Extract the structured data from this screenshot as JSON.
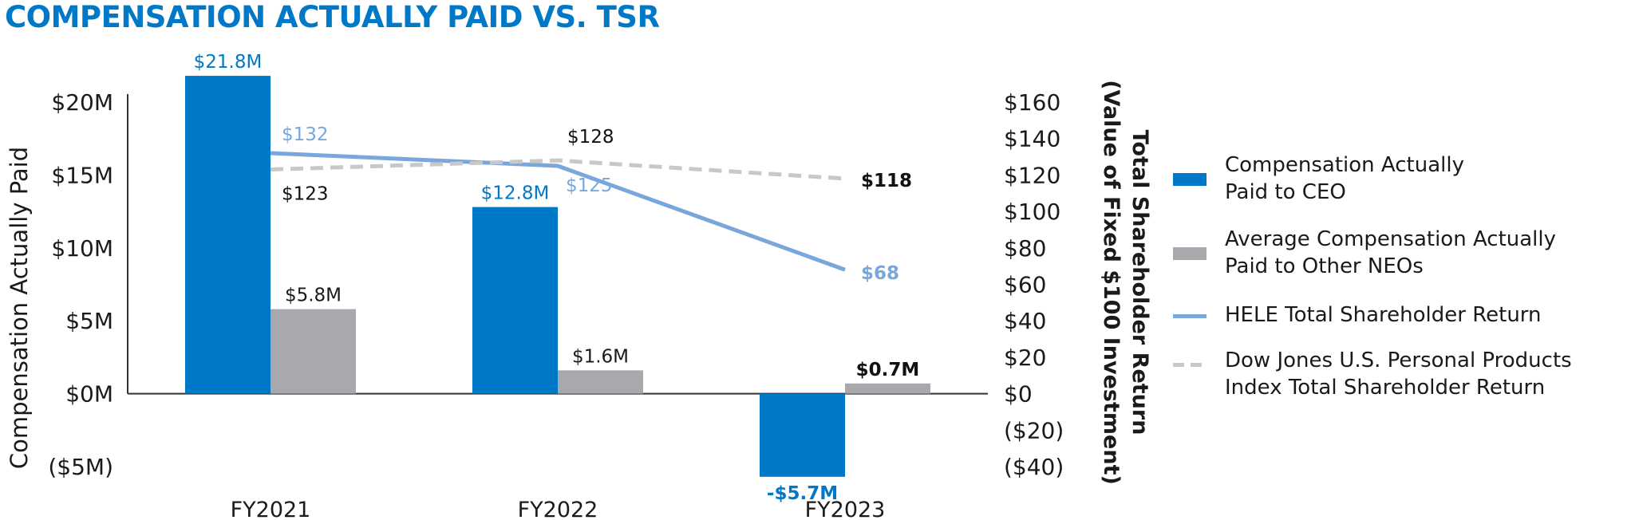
{
  "chart_data": {
    "type": "bar",
    "title": "COMPENSATION ACTUALLY PAID VS. TSR",
    "categories": [
      "FY2021",
      "FY2022",
      "FY2023"
    ],
    "ylabel_left": "Compensation Actually Paid",
    "ylabel_right_line1": "Total Shareholder Return",
    "ylabel_right_line2": "(Value of Fixed $100 Investment)",
    "left_axis": {
      "ylim": [
        -5,
        20
      ],
      "ticks": [
        20,
        15,
        10,
        5,
        0,
        -5
      ],
      "tick_labels": [
        "$20M",
        "$15M",
        "$10M",
        "$5M",
        "$0M",
        "($5M)"
      ]
    },
    "right_axis": {
      "ylim": [
        -40,
        160
      ],
      "ticks": [
        160,
        140,
        120,
        100,
        80,
        60,
        40,
        20,
        0,
        -20,
        -40
      ],
      "tick_labels": [
        "$160",
        "$140",
        "$120",
        "$100",
        "$80",
        "$60",
        "$40",
        "$20",
        "$0",
        "($20)",
        "($40)"
      ]
    },
    "bar_series": [
      {
        "name": "Compensation Actually Paid to CEO",
        "color": "#0078c8",
        "values": [
          21.8,
          12.8,
          -5.7
        ],
        "labels": [
          "$21.8M",
          "$12.8M",
          "-$5.7M"
        ],
        "label_bold": [
          false,
          false,
          true
        ]
      },
      {
        "name": "Average Compensation Actually Paid to Other NEOs",
        "color": "#a7a9ac",
        "values": [
          5.8,
          1.6,
          0.7
        ],
        "labels": [
          "$5.8M",
          "$1.6M",
          "$0.7M"
        ],
        "label_bold": [
          false,
          false,
          true
        ]
      }
    ],
    "line_series": [
      {
        "name": "HELE Total Shareholder Return",
        "color": "#79a7dc",
        "style": "solid",
        "values": [
          132,
          125,
          68
        ],
        "labels": [
          "$132",
          "$125",
          "$68"
        ],
        "label_bold": [
          false,
          false,
          true
        ]
      },
      {
        "name": "Dow Jones U.S. Personal Products Index Total Shareholder Return",
        "color": "#c8c8c8",
        "style": "dashed",
        "values": [
          123,
          128,
          118
        ],
        "labels": [
          "$123",
          "$128",
          "$118"
        ],
        "label_bold": [
          false,
          false,
          true
        ]
      }
    ],
    "legend_position": "right",
    "grid": false
  },
  "legend": {
    "items": [
      {
        "label": "Compensation Actually\nPaid to CEO",
        "kind": "bar",
        "color": "#0078c8"
      },
      {
        "label": "Average Compensation Actually\nPaid to Other NEOs",
        "kind": "bar",
        "color": "#a7a9ac"
      },
      {
        "label": "HELE Total Shareholder Return",
        "kind": "line",
        "color": "#79a7dc"
      },
      {
        "label": "Dow Jones U.S. Personal Products\nIndex Total Shareholder Return",
        "kind": "dash",
        "color": "#c8c8c8"
      }
    ]
  },
  "colors": {
    "title": "#0078c8",
    "axis_text": "#1a1a1a"
  }
}
